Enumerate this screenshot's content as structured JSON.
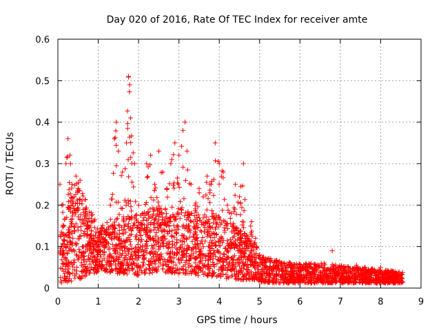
{
  "chart_data": {
    "type": "scatter",
    "title": "Day 020 of 2016, Rate Of TEC Index for receiver amte",
    "xlabel": "GPS time / hours",
    "ylabel": "ROTI / TECUs",
    "xlim": [
      0,
      9
    ],
    "ylim": [
      0,
      0.6
    ],
    "xticks": [
      "0",
      "1",
      "2",
      "3",
      "4",
      "5",
      "6",
      "7",
      "8",
      "9"
    ],
    "yticks": [
      "0",
      "0.1",
      "0.2",
      "0.3",
      "0.4",
      "0.5",
      "0.6"
    ],
    "grid": true,
    "marker": "+",
    "color": "#ff0000",
    "point_density": "dense cloud, ~3000 points approximated from visual envelope",
    "series": [
      {
        "name": "ROTI",
        "x": [
          0.05,
          0.1,
          0.15,
          0.2,
          0.25,
          0.3,
          0.35,
          0.4,
          0.45,
          0.5,
          0.55,
          0.6,
          0.7,
          0.8,
          0.9,
          1.0,
          1.1,
          1.2,
          1.3,
          1.4,
          1.45,
          1.5,
          1.6,
          1.7,
          1.75,
          1.78,
          1.8,
          1.9,
          2.0,
          2.1,
          2.2,
          2.3,
          2.4,
          2.5,
          2.6,
          2.7,
          2.8,
          2.9,
          3.0,
          3.1,
          3.15,
          3.2,
          3.3,
          3.4,
          3.5,
          3.6,
          3.7,
          3.8,
          3.9,
          4.0,
          4.1,
          4.2,
          4.3,
          4.4,
          4.5,
          4.6,
          4.7,
          4.8,
          4.9,
          5.0,
          5.2,
          5.4,
          5.6,
          5.8,
          6.0,
          6.2,
          6.4,
          6.6,
          6.8,
          7.0,
          7.2,
          7.4,
          7.6,
          7.8,
          8.0,
          8.2,
          8.4,
          8.5
        ],
        "y": [
          0.25,
          0.2,
          0.15,
          0.3,
          0.36,
          0.32,
          0.25,
          0.22,
          0.27,
          0.24,
          0.26,
          0.21,
          0.18,
          0.15,
          0.12,
          0.12,
          0.11,
          0.13,
          0.2,
          0.36,
          0.4,
          0.33,
          0.28,
          0.35,
          0.51,
          0.49,
          0.41,
          0.3,
          0.2,
          0.18,
          0.3,
          0.32,
          0.25,
          0.33,
          0.28,
          0.24,
          0.3,
          0.35,
          0.32,
          0.38,
          0.4,
          0.33,
          0.25,
          0.2,
          0.24,
          0.22,
          0.27,
          0.25,
          0.35,
          0.3,
          0.28,
          0.2,
          0.18,
          0.25,
          0.22,
          0.3,
          0.12,
          0.16,
          0.12,
          0.08,
          0.07,
          0.06,
          0.06,
          0.055,
          0.05,
          0.05,
          0.055,
          0.06,
          0.09,
          0.05,
          0.05,
          0.055,
          0.05,
          0.045,
          0.05,
          0.04,
          0.035,
          0.03
        ]
      }
    ],
    "envelope": {
      "x": [
        0,
        0.5,
        1,
        1.5,
        2,
        2.5,
        3,
        3.5,
        4,
        4.5,
        4.9,
        5.0,
        5.5,
        6,
        6.5,
        7,
        7.5,
        8,
        8.5
      ],
      "upper": [
        0.2,
        0.26,
        0.15,
        0.17,
        0.18,
        0.2,
        0.2,
        0.18,
        0.18,
        0.14,
        0.11,
        0.08,
        0.065,
        0.06,
        0.06,
        0.055,
        0.05,
        0.045,
        0.04
      ],
      "lower": [
        0.01,
        0.02,
        0.04,
        0.035,
        0.03,
        0.04,
        0.035,
        0.03,
        0.025,
        0.02,
        0.02,
        0.015,
        0.012,
        0.012,
        0.012,
        0.012,
        0.012,
        0.012,
        0.012
      ]
    }
  }
}
